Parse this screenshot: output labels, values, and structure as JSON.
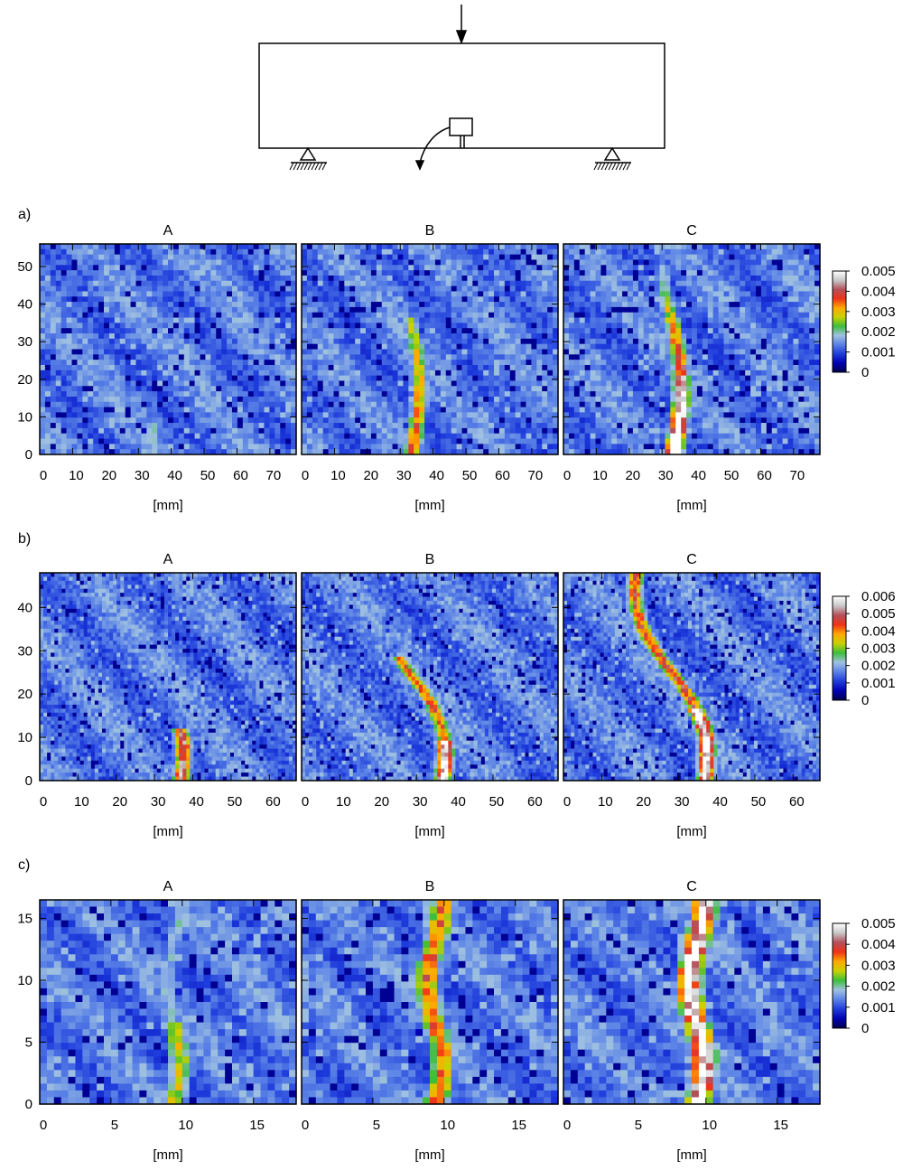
{
  "schematic": {},
  "colors": {
    "scale": [
      "#000050",
      "#0000b4",
      "#1e3cdc",
      "#5a82e6",
      "#9fc1e1",
      "#3cbe3c",
      "#c8d200",
      "#ffaa00",
      "#f03219",
      "#b4505a",
      "#c8c8c8",
      "#ffffff"
    ]
  },
  "chart_data": [
    {
      "type": "heatmap",
      "label": "a)",
      "panels": [
        "A",
        "B",
        "C"
      ],
      "xlabel": "[mm]",
      "xticks": [
        0,
        10,
        20,
        30,
        40,
        50,
        60,
        70
      ],
      "yticks": [
        0,
        10,
        20,
        30,
        40,
        50
      ],
      "xlim": [
        0,
        78
      ],
      "ylim": [
        0,
        56
      ],
      "colorbar_ticks": [
        "0.005",
        "0.004",
        "0.003",
        "0.002",
        "0.001",
        "0"
      ],
      "colorbar_range": [
        0,
        0.005
      ]
    },
    {
      "type": "heatmap",
      "label": "b)",
      "panels": [
        "A",
        "B",
        "C"
      ],
      "xlabel": "[mm]",
      "xticks": [
        0,
        10,
        20,
        30,
        40,
        50,
        60
      ],
      "yticks": [
        0,
        10,
        20,
        30,
        40
      ],
      "xlim": [
        0,
        67
      ],
      "ylim": [
        0,
        48
      ],
      "colorbar_ticks": [
        "0.006",
        "0.005",
        "0.004",
        "0.003",
        "0.002",
        "0.001",
        "0"
      ],
      "colorbar_range": [
        0,
        0.006
      ]
    },
    {
      "type": "heatmap",
      "label": "c)",
      "panels": [
        "A",
        "B",
        "C"
      ],
      "xlabel": "[mm]",
      "xticks": [
        0,
        5,
        10,
        15
      ],
      "yticks": [
        0,
        5,
        10,
        15
      ],
      "xlim": [
        0,
        18
      ],
      "ylim": [
        0,
        16.5
      ],
      "colorbar_ticks": [
        "0.005",
        "0.004",
        "0.003",
        "0.002",
        "0.001",
        "0"
      ],
      "colorbar_range": [
        0,
        0.005
      ]
    }
  ]
}
